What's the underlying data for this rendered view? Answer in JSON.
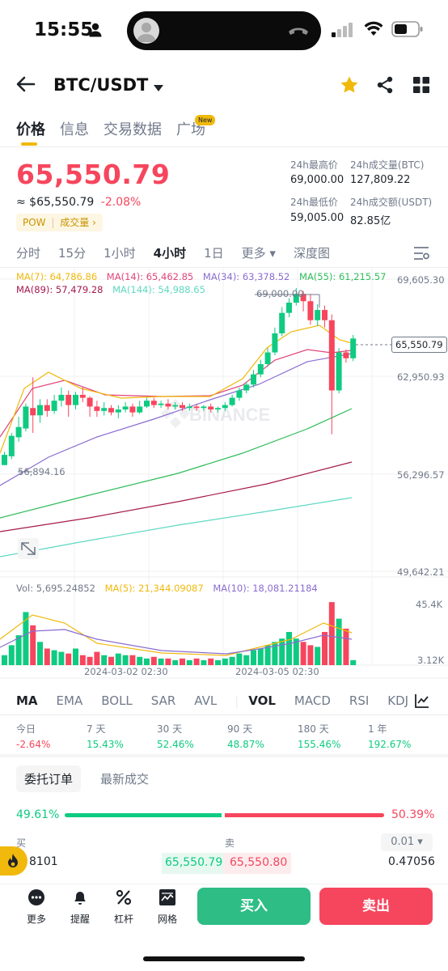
{
  "status": {
    "time": "15:55"
  },
  "header": {
    "pair": "BTC/USDT"
  },
  "tabs": [
    {
      "label": "价格"
    },
    {
      "label": "信息"
    },
    {
      "label": "交易数据"
    },
    {
      "label": "广场"
    }
  ],
  "new_badge": "New",
  "ticker": {
    "price": "65,550.79",
    "approx": "≈ $65,550.79",
    "change": "-2.08%",
    "tag1": "POW",
    "tag2": "成交量 ›",
    "high_label": "24h最高价",
    "high": "69,000.00",
    "vol_btc_label": "24h成交量(BTC)",
    "vol_btc": "127,809.22",
    "low_label": "24h最低价",
    "low": "59,005.00",
    "vol_usdt_label": "24h成交额(USDT)",
    "vol_usdt": "82.85亿"
  },
  "timeframes": [
    "分时",
    "15分",
    "1小时",
    "4小时",
    "1日",
    "更多 ▾",
    "深度图"
  ],
  "ma_lines": {
    "ma7": "MA(7): 64,786.86",
    "ma14": "MA(14): 65,462.85",
    "ma34": "MA(34): 63,378.52",
    "ma55": "MA(55): 61,215.57",
    "ma89": "MA(89): 57,479.28",
    "ma144": "MA(144): 54,988.65"
  },
  "price_axis": [
    "69,605.30",
    "62,950.93",
    "56,296.57",
    "49,642.21"
  ],
  "chart_labels": {
    "high": "69,000.00",
    "low": "56,894.16",
    "current": "65,550.79"
  },
  "watermark": "BINANCE",
  "volume": {
    "vol": "Vol: 5,695.24852",
    "ma5": "MA(5): 21,344.09087",
    "ma10": "MA(10): 18,081.21184",
    "axis_top": "45.4K",
    "axis_bottom": "3.12K"
  },
  "dates": [
    "2024-03-02 02:30",
    "2024-03-05 02:30"
  ],
  "indicators": [
    "MA",
    "EMA",
    "BOLL",
    "SAR",
    "AVL",
    "VOL",
    "MACD",
    "RSI",
    "KDJ"
  ],
  "performance": [
    {
      "label": "今日",
      "value": "-2.64%"
    },
    {
      "label": "7 天",
      "value": "15.43%"
    },
    {
      "label": "30 天",
      "value": "52.46%"
    },
    {
      "label": "90 天",
      "value": "48.87%"
    },
    {
      "label": "180 天",
      "value": "155.46%"
    },
    {
      "label": "1 年",
      "value": "192.67%"
    }
  ],
  "orderbook": {
    "tab1": "委托订单",
    "tab2": "最新成交",
    "buy_pct": "49.61%",
    "sell_pct": "50.39%",
    "buy_label": "买",
    "sell_label": "卖",
    "precision": "0.01 ▾",
    "bid_qty": "8101",
    "bid": "65,550.79",
    "ask": "65,550.80",
    "ask_qty": "0.47056"
  },
  "bottom": {
    "more": "更多",
    "alert": "提醒",
    "leverage": "杠杆",
    "grid": "网格",
    "buy": "买入",
    "sell": "卖出"
  },
  "colors": {
    "up": "#0ecb81",
    "down": "#f6465d",
    "accent": "#f0b90b"
  }
}
